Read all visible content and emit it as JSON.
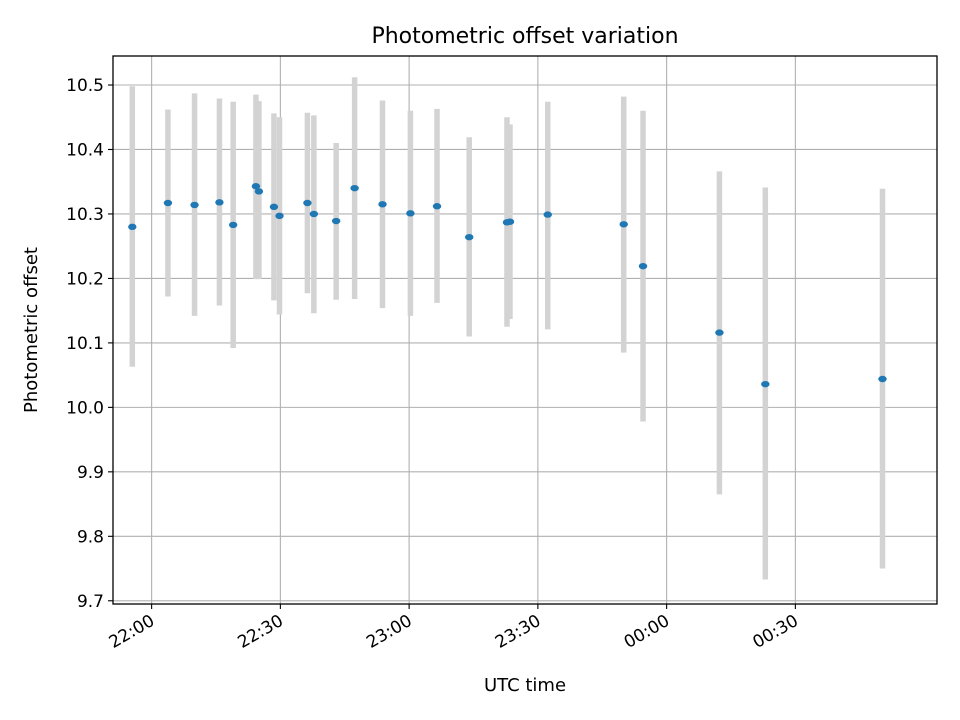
{
  "chart_data": {
    "type": "scatter",
    "title": "Photometric offset variation",
    "xlabel": "UTC time",
    "ylabel": "Photometric offset",
    "x_axis_kind": "time",
    "x_time_start": "21:51",
    "x_time_end": "01:03",
    "x_ticks": [
      "22:00",
      "22:30",
      "23:00",
      "23:30",
      "00:00",
      "00:30"
    ],
    "ylim": [
      9.695,
      10.545
    ],
    "y_ticks": [
      "9.7",
      "9.8",
      "9.9",
      "10.0",
      "10.1",
      "10.2",
      "10.3",
      "10.4",
      "10.5"
    ],
    "grid": true,
    "marker_color": "#1f77b4",
    "errorbar_color": "#d3d3d3",
    "points": [
      {
        "time": "21:55.5",
        "value": 10.28,
        "err_low": 10.063,
        "err_high": 10.498
      },
      {
        "time": "22:03.8",
        "value": 10.317,
        "err_low": 10.172,
        "err_high": 10.462
      },
      {
        "time": "22:10.0",
        "value": 10.314,
        "err_low": 10.142,
        "err_high": 10.487
      },
      {
        "time": "22:15.8",
        "value": 10.318,
        "err_low": 10.158,
        "err_high": 10.479
      },
      {
        "time": "22:19.0",
        "value": 10.283,
        "err_low": 10.092,
        "err_high": 10.474
      },
      {
        "time": "22:24.3",
        "value": 10.343,
        "err_low": 10.199,
        "err_high": 10.485
      },
      {
        "time": "22:25.0",
        "value": 10.335,
        "err_low": 10.199,
        "err_high": 10.475
      },
      {
        "time": "22:28.5",
        "value": 10.311,
        "err_low": 10.166,
        "err_high": 10.456
      },
      {
        "time": "22:29.8",
        "value": 10.297,
        "err_low": 10.144,
        "err_high": 10.45
      },
      {
        "time": "22:36.3",
        "value": 10.317,
        "err_low": 10.177,
        "err_high": 10.457
      },
      {
        "time": "22:37.8",
        "value": 10.3,
        "err_low": 10.146,
        "err_high": 10.453
      },
      {
        "time": "22:43.0",
        "value": 10.289,
        "err_low": 10.167,
        "err_high": 10.41
      },
      {
        "time": "22:47.3",
        "value": 10.34,
        "err_low": 10.168,
        "err_high": 10.512
      },
      {
        "time": "22:53.8",
        "value": 10.315,
        "err_low": 10.154,
        "err_high": 10.476
      },
      {
        "time": "23:00.3",
        "value": 10.301,
        "err_low": 10.142,
        "err_high": 10.46
      },
      {
        "time": "23:06.5",
        "value": 10.312,
        "err_low": 10.162,
        "err_high": 10.463
      },
      {
        "time": "23:14.0",
        "value": 10.264,
        "err_low": 10.11,
        "err_high": 10.419
      },
      {
        "time": "23:22.8",
        "value": 10.287,
        "err_low": 10.125,
        "err_high": 10.45
      },
      {
        "time": "23:23.5",
        "value": 10.288,
        "err_low": 10.137,
        "err_high": 10.439
      },
      {
        "time": "23:32.3",
        "value": 10.299,
        "err_low": 10.121,
        "err_high": 10.474
      },
      {
        "time": "23:50.0",
        "value": 10.284,
        "err_low": 10.085,
        "err_high": 10.482
      },
      {
        "time": "23:54.5",
        "value": 10.219,
        "err_low": 9.978,
        "err_high": 10.46
      },
      {
        "time": "00:12.3",
        "value": 10.116,
        "err_low": 9.865,
        "err_high": 10.366
      },
      {
        "time": "00:23.0",
        "value": 10.036,
        "err_low": 9.733,
        "err_high": 10.341
      },
      {
        "time": "00:50.3",
        "value": 10.044,
        "err_low": 9.75,
        "err_high": 10.339
      }
    ]
  }
}
